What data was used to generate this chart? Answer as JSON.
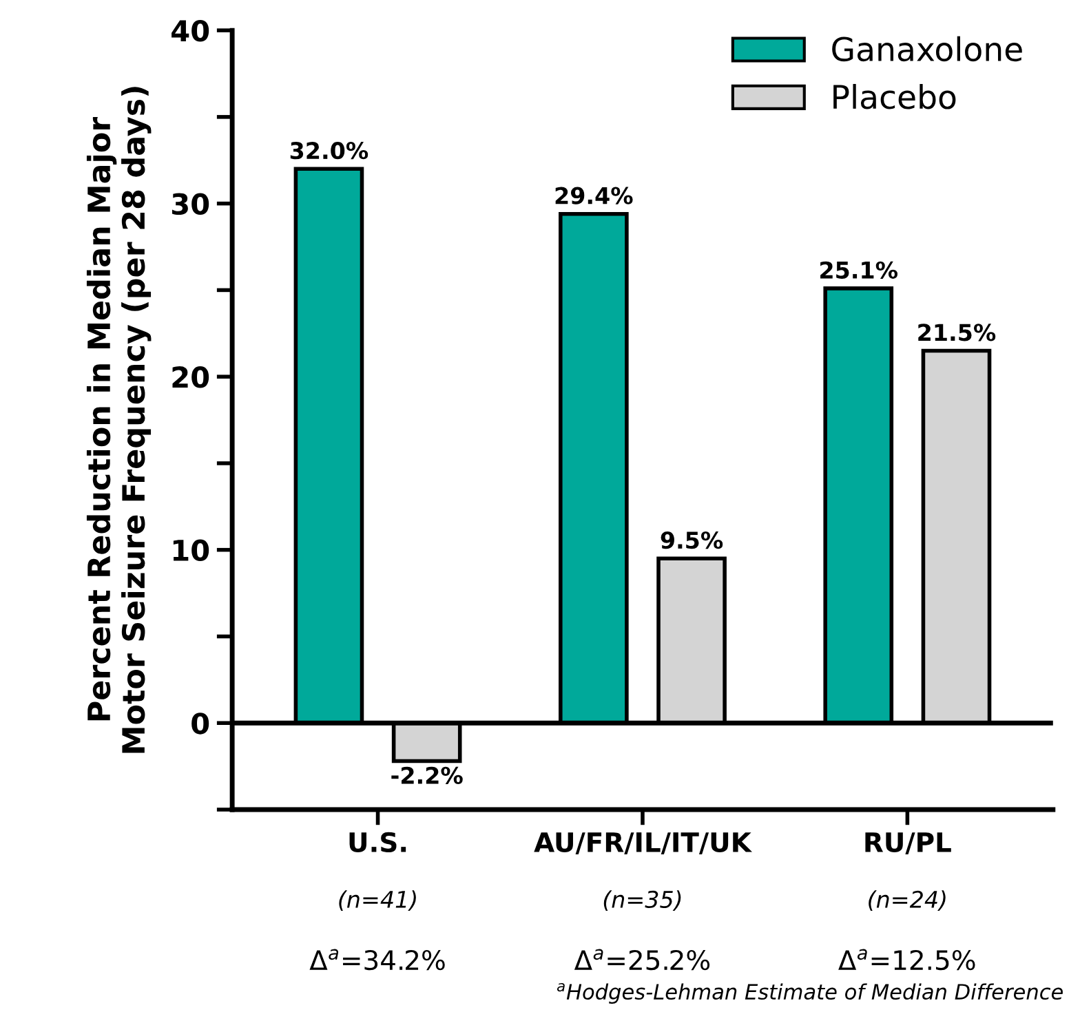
{
  "chart_data": {
    "type": "bar",
    "ylabel": "Percent Reduction in Median Major\nMotor Seizure Frequency (per 28 days)",
    "categories": [
      "U.S.",
      "AU/FR/IL/IT/UK",
      "RU/PL"
    ],
    "series": [
      {
        "name": "Ganaxolone",
        "color": "#00a99a",
        "values": [
          32.0,
          29.4,
          25.1
        ],
        "value_labels": [
          "32.0%",
          "29.4%",
          "25.1%"
        ]
      },
      {
        "name": "Placebo",
        "color": "#d4d4d4",
        "values": [
          -2.2,
          9.5,
          21.5
        ],
        "value_labels": [
          "-2.2%",
          "9.5%",
          "21.5%"
        ]
      }
    ],
    "ylim": [
      -5,
      40
    ],
    "yticks": [
      {
        "value": -5,
        "label": null
      },
      0,
      {
        "value": 5,
        "label": null
      },
      10,
      {
        "value": 15,
        "label": null
      },
      20,
      {
        "value": 25,
        "label": null
      },
      30,
      {
        "value": 35,
        "label": null
      },
      40
    ],
    "ref_lines": [
      {
        "axis": "y",
        "value": 0,
        "color": "#000000"
      }
    ],
    "annotations": [
      "(n=41)",
      "(n=35)",
      "(n=24)",
      "Δ$^{a}$=34.2%",
      "Δ$^{a}$=25.2%",
      "Δ$^{a}$=12.5%",
      "$^{a}$Hodges-Lehman Estimate of Median Difference"
    ],
    "legend": "top right",
    "grid": false
  }
}
